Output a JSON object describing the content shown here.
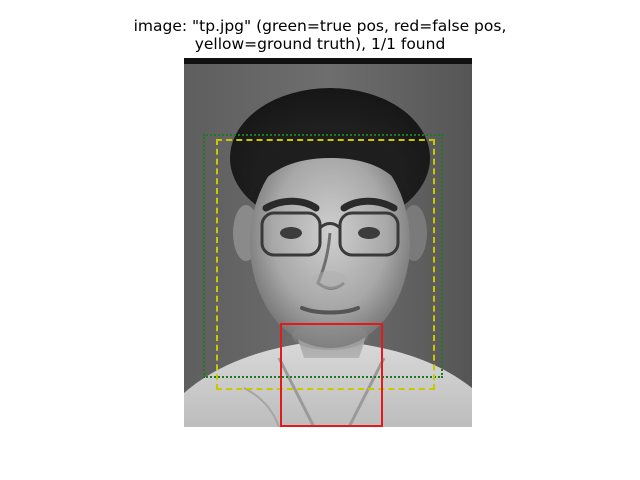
{
  "figure": {
    "title_line1": "image: \"tp.jpg\" (green=true pos, red=false pos,",
    "title_line2": "yellow=ground truth), 1/1 found"
  },
  "legend_colors": {
    "true_pos": "#1f7a1f",
    "false_pos": "#e31a1c",
    "ground_truth": "#c8c800"
  },
  "photo": {
    "subject": "grayscale-face-photo"
  }
}
